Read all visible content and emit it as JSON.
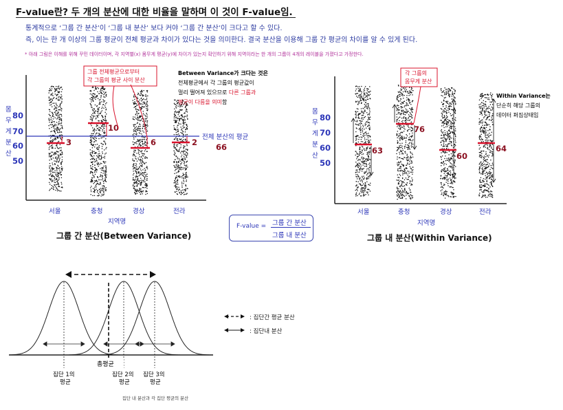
{
  "header": {
    "title": "F-value란? 두 개의 분산에 대한 비율을 말하며 이 것이 F-value임.",
    "line1": "통계적으로 ‘그룹 간 분산’이 ‘그룹 내 분산’ 보다 커야 ‘그룹 간 분산’이 크다고 할 수 있다.",
    "line2": "즉, 이는 한 개 이상의 그룹 평균이 전체 평균과 차이가 있다는 것을 의미한다. 결국 분산을 이용해 그룹 간 평균의 차이를 알 수 있게 된다.",
    "note": "* 아래 그림은 이해를 위해 꾸민 데이터이며, 각 지역별(x) 몸무게 평균(y)에 차이가 있는지 확인하기 위해 지역이라는 한 개의 그룹이 4개의  레이블을 가졌다고 가정한다."
  },
  "colors": {
    "accent_red": "#d8102a",
    "mean_blue": "#2c36b8",
    "label_blue": "#2b3aa0",
    "value_red": "#8b1020"
  },
  "formula": {
    "label": "F-value =",
    "numerator": "그룹 간 분산",
    "denominator": "그룹 내 분산"
  },
  "chart_data": [
    {
      "type": "scatter",
      "title": "그룹 간 분산(Between Variance)",
      "xlabel": "지역명",
      "ylabel": "몸무게 분산",
      "yticks": [
        50,
        60,
        70,
        80
      ],
      "categories": [
        "서울",
        "충청",
        "경상",
        "전라"
      ],
      "group_means": [
        63,
        76,
        60,
        64
      ],
      "diff_labels": [
        "3",
        "10",
        "6",
        "2"
      ],
      "overall_mean": 66,
      "overall_mean_label": "전체 분산의 평균",
      "callout": "그룹 전체평균으로부터 각 그룹의 평균 사이 분산",
      "annotation": {
        "line1": "Between Variance가 크다는 것은",
        "line2": "전체평균에서 각 그룹의 평균값이",
        "line3a": "멀리 떨어져 있으므로 ",
        "line3b": "다른 그룹과",
        "line4": "평균이 다름을 의미",
        "line4b": "함"
      }
    },
    {
      "type": "scatter",
      "title": "그룹 내 분산(Within Variance)",
      "xlabel": "지역명",
      "ylabel": "몸무게 분산",
      "yticks": [
        50,
        60,
        70,
        80
      ],
      "categories": [
        "서울",
        "충청",
        "경상",
        "전라"
      ],
      "group_means": [
        63,
        76,
        60,
        64
      ],
      "mean_labels": [
        "63",
        "76",
        "60",
        "64"
      ],
      "callout": "각 그룹의 몸무게 분산",
      "annotation": {
        "line1": "Within Variance는",
        "line2": "단순히 해당 그룹의",
        "line3": "데이터 퍼짐상태임"
      }
    },
    {
      "type": "diagram",
      "distributions": [
        {
          "name": "집단 1의 평균",
          "line1": "집단 1의",
          "line2": "평균"
        },
        {
          "name": "집단 2의 평균",
          "line1": "집단 2의",
          "line2": "평균"
        },
        {
          "name": "집단 3의 평균",
          "line1": "집단 3의",
          "line2": "평균"
        }
      ],
      "total_mean_label": "총평균",
      "legend": [
        {
          "style": "dashed",
          "label": ": 집단간 평균 분산"
        },
        {
          "style": "solid",
          "label": ": 집단내 분산"
        }
      ],
      "caption": "집단 내 분산과 각 집단 평균의 분산"
    }
  ]
}
